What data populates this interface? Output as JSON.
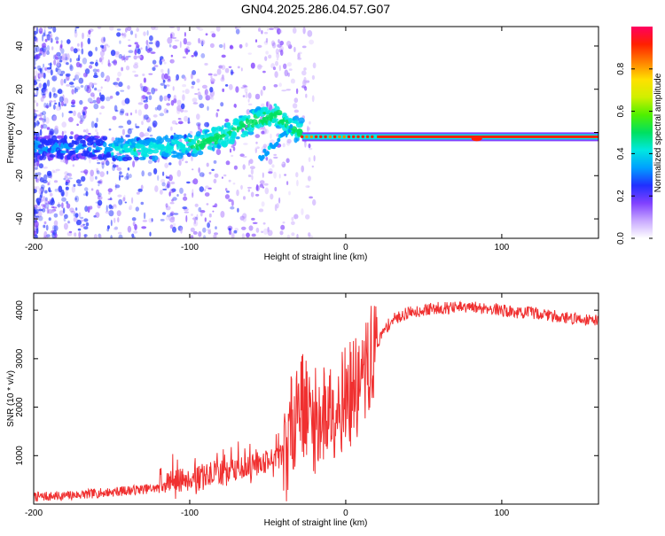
{
  "title": "GN04.2025.286.04.57.G07",
  "chart_data": [
    {
      "type": "heatmap",
      "name": "spectrogram",
      "xlabel": "Height of straight line (km)",
      "ylabel": "Frequency (Hz)",
      "xlim": [
        -200,
        162
      ],
      "ylim": [
        -49,
        49
      ],
      "xticks": [
        -200,
        -100,
        0,
        100
      ],
      "yticks": [
        -40,
        -20,
        0,
        20,
        40
      ],
      "colorbar": {
        "label": "Normalized spectral amplitude",
        "range": [
          0,
          1
        ],
        "ticks": [
          "0.0",
          "0.2",
          "0.4",
          "0.6",
          "0.8"
        ],
        "colors": [
          "#ffffff",
          "#c8a8ff",
          "#8040ff",
          "#2030ff",
          "#00a0ff",
          "#00e8e0",
          "#00e060",
          "#50f000",
          "#d0f000",
          "#ffe000",
          "#ff8000",
          "#ff2000",
          "#ff0060"
        ]
      },
      "ridge": [
        {
          "x": -200,
          "f": -7
        },
        {
          "x": -160,
          "f": -7
        },
        {
          "x": -130,
          "f": -8
        },
        {
          "x": -100,
          "f": -6
        },
        {
          "x": -80,
          "f": -2
        },
        {
          "x": -60,
          "f": 5
        },
        {
          "x": -45,
          "f": 8
        },
        {
          "x": -35,
          "f": 2
        },
        {
          "x": -25,
          "f": 0
        },
        {
          "x": 0,
          "f": -2
        },
        {
          "x": 80,
          "f": -2
        },
        {
          "x": 162,
          "f": -2
        }
      ],
      "branch": [
        {
          "x": -55,
          "f": -12
        },
        {
          "x": -45,
          "f": -5
        },
        {
          "x": -35,
          "f": 3
        }
      ]
    },
    {
      "type": "line",
      "name": "snr",
      "xlabel": "Height of straight line (km)",
      "ylabel": "SNR (10 * v/v)",
      "xlim": [
        -200,
        162
      ],
      "ylim": [
        0,
        4350
      ],
      "xticks": [
        -200,
        -100,
        0,
        100
      ],
      "yticks": [
        1000,
        2000,
        3000,
        4000
      ],
      "color": "#f03030",
      "series": [
        {
          "name": "SNR",
          "x": [
            -200,
            -180,
            -160,
            -140,
            -120,
            -100,
            -80,
            -60,
            -50,
            -40,
            -33,
            -30,
            -25,
            -20,
            -15,
            -10,
            -5,
            0,
            5,
            10,
            15,
            20,
            25,
            30,
            40,
            50,
            60,
            70,
            80,
            90,
            100,
            110,
            120,
            130,
            140,
            150,
            162
          ],
          "values": [
            150,
            170,
            220,
            280,
            330,
            420,
            560,
            700,
            800,
            900,
            1800,
            2300,
            1900,
            1700,
            1800,
            2000,
            2100,
            2200,
            2300,
            2500,
            2900,
            3300,
            3600,
            3800,
            3950,
            4000,
            4050,
            4050,
            4050,
            4050,
            4000,
            3950,
            3950,
            3900,
            3850,
            3820,
            3800
          ]
        }
      ]
    }
  ]
}
